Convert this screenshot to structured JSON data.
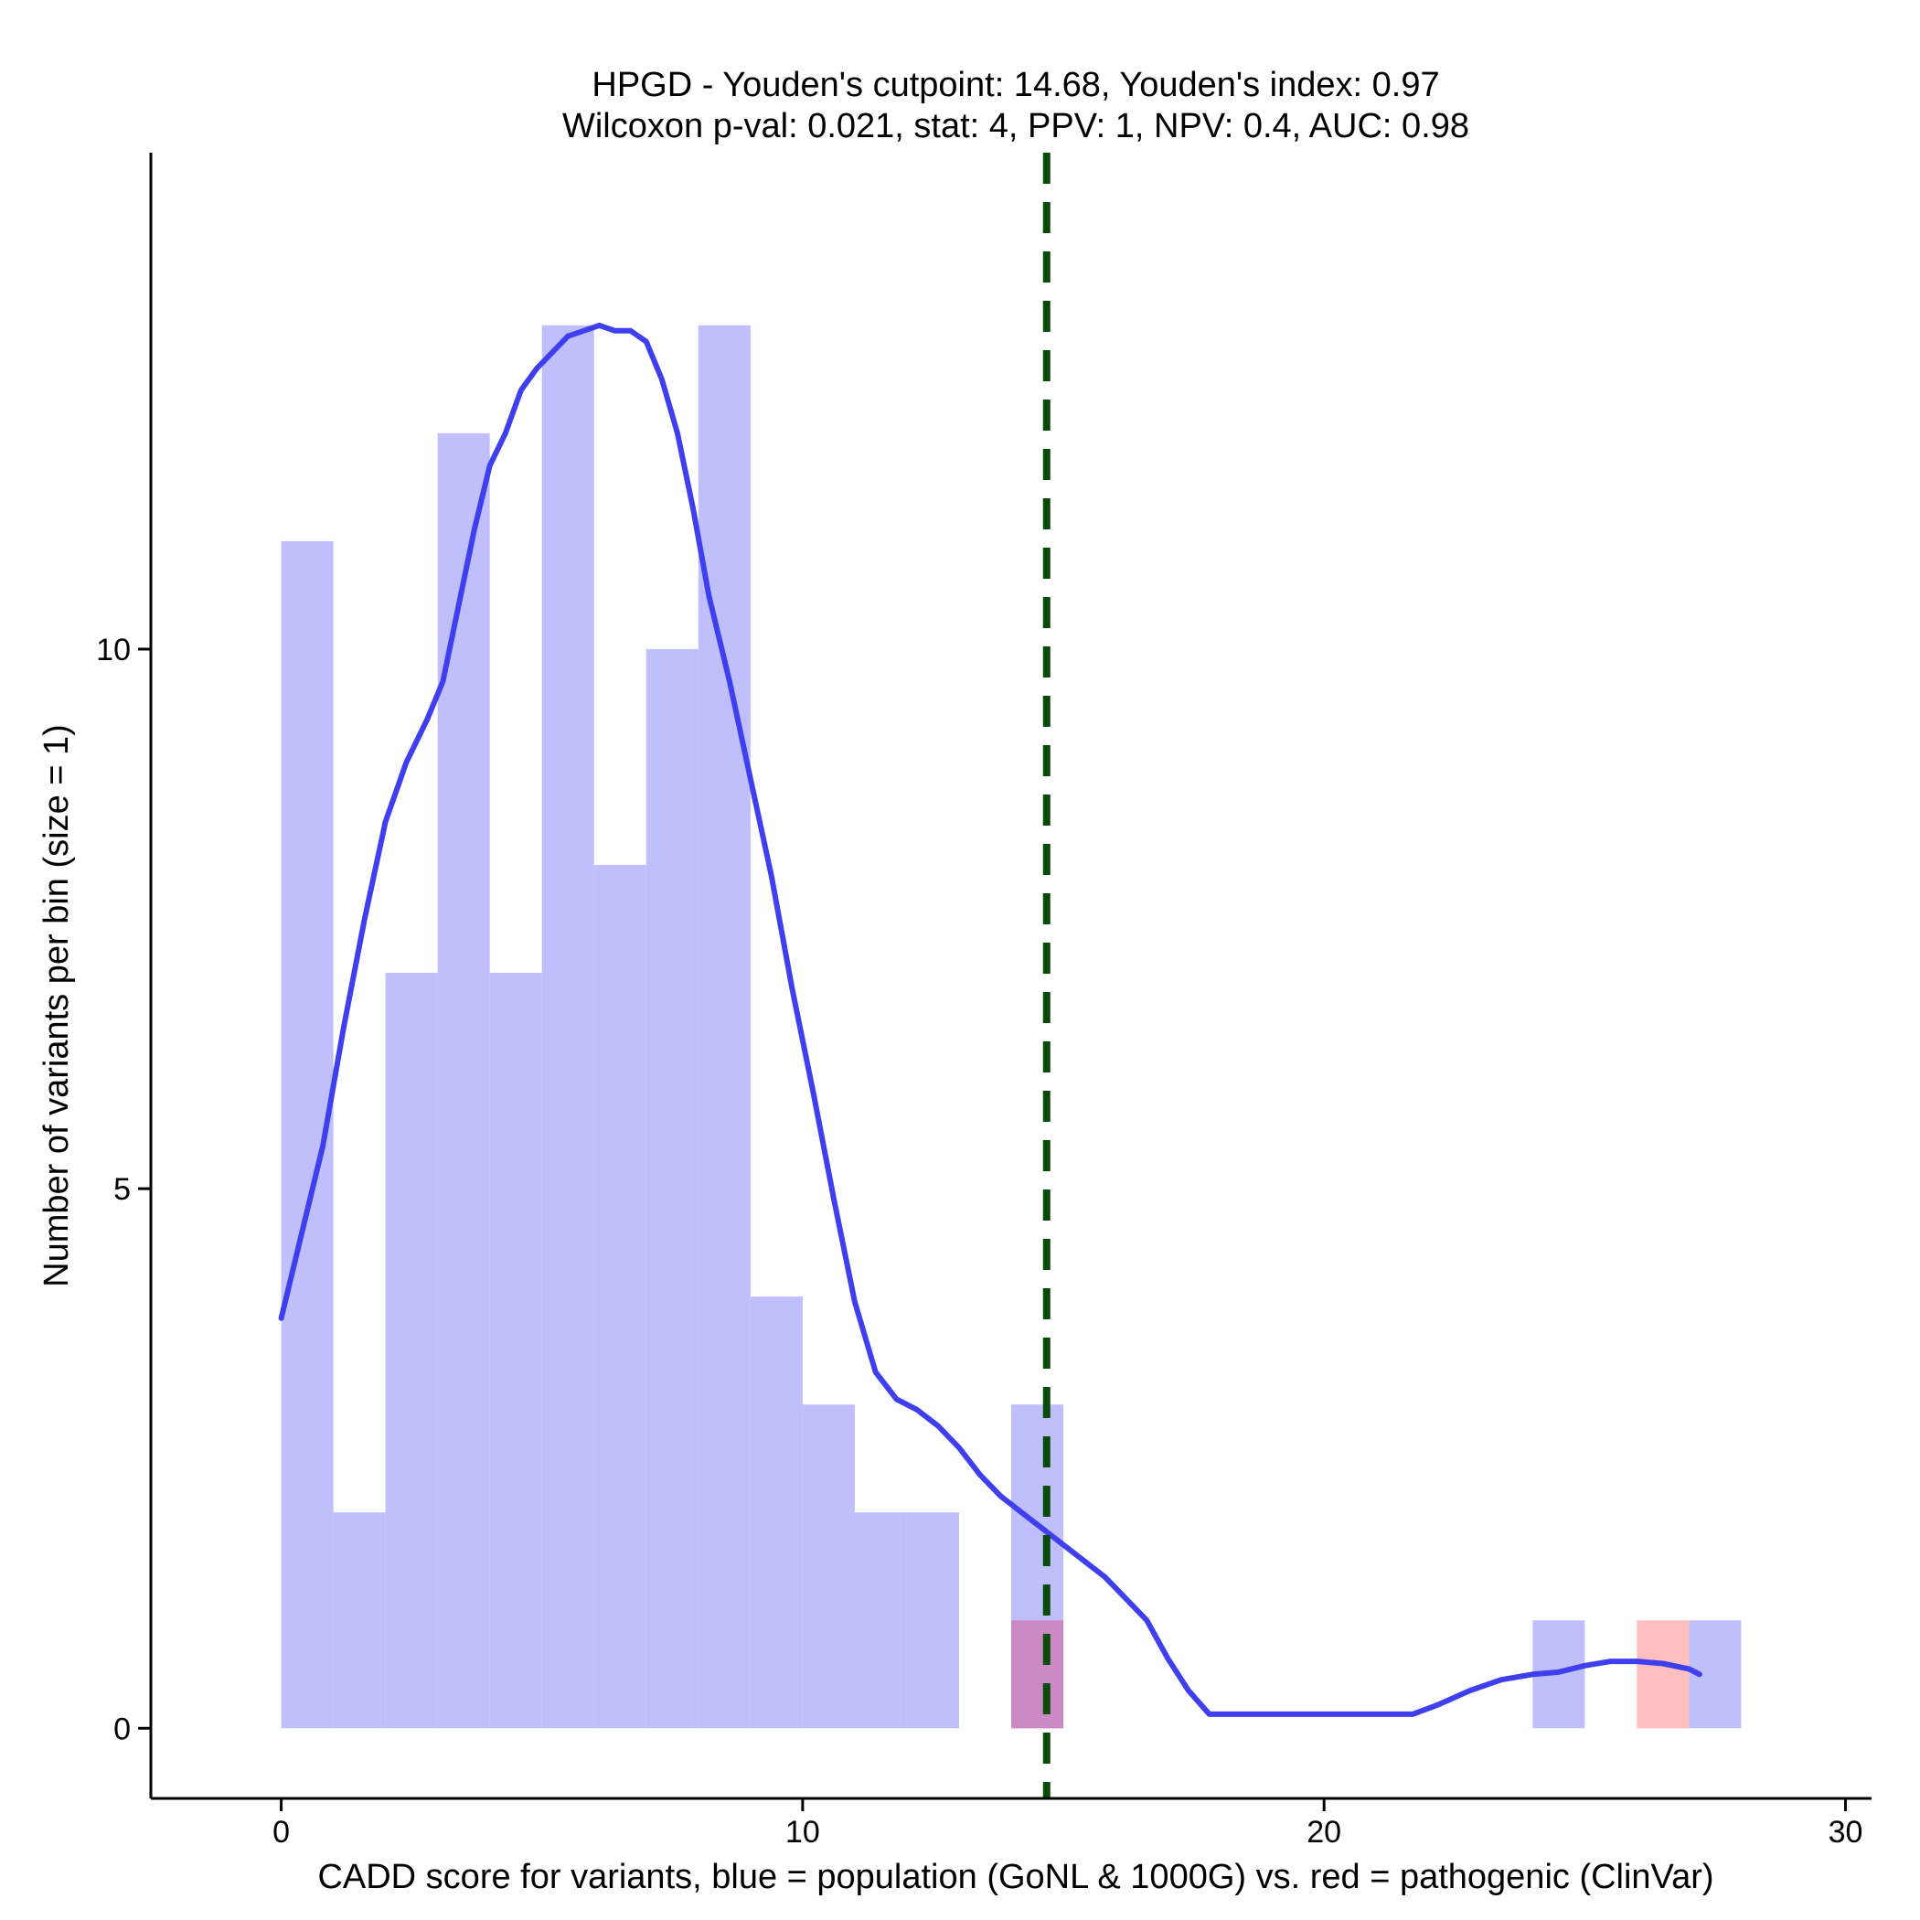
{
  "chart_data": {
    "type": "bar",
    "title": "HPGD - Youden's cutpoint: 14.68, Youden's index: 0.97",
    "subtitle": "Wilcoxon p-val: 0.021, stat: 4, PPV: 1, NPV: 0.4, AUC: 0.98",
    "xlabel": "CADD score for variants, blue = population (GoNL & 1000G) vs. red = pathogenic (ClinVar)",
    "ylabel": "Number of variants per bin (size = 1)",
    "xlim": [
      -2.5,
      30.5
    ],
    "ylim": [
      -0.65,
      14.6
    ],
    "x_ticks": [
      0,
      10,
      20,
      30
    ],
    "y_ticks": [
      0,
      5,
      10
    ],
    "bin_size": 1,
    "colors": {
      "population": "#bfbffc",
      "pathogenic": "#ffbfbf",
      "overlap": "#cc8ac4",
      "density": "#3f3fef",
      "cutpoint": "#0a4a0a"
    },
    "population_bins": [
      {
        "start": 0,
        "count": 11
      },
      {
        "start": 1,
        "count": 2
      },
      {
        "start": 2,
        "count": 7
      },
      {
        "start": 3,
        "count": 12
      },
      {
        "start": 4,
        "count": 7
      },
      {
        "start": 5,
        "count": 13
      },
      {
        "start": 6,
        "count": 8
      },
      {
        "start": 7,
        "count": 10
      },
      {
        "start": 8,
        "count": 13
      },
      {
        "start": 9,
        "count": 4
      },
      {
        "start": 10,
        "count": 3
      },
      {
        "start": 11,
        "count": 2
      },
      {
        "start": 12,
        "count": 2
      },
      {
        "start": 14,
        "count": 3
      },
      {
        "start": 24,
        "count": 1
      },
      {
        "start": 27,
        "count": 1
      }
    ],
    "pathogenic_bins": [
      {
        "start": 14,
        "count": 1
      },
      {
        "start": 26,
        "count": 1
      }
    ],
    "cutpoint": 14.68,
    "density_curve": {
      "x": [
        0,
        0.4,
        0.8,
        1.2,
        1.6,
        2.0,
        2.4,
        2.8,
        3.1,
        3.4,
        3.7,
        4.0,
        4.3,
        4.6,
        4.9,
        5.2,
        5.5,
        5.8,
        6.1,
        6.4,
        6.7,
        7.0,
        7.3,
        7.6,
        7.9,
        8.2,
        8.6,
        9.0,
        9.4,
        9.8,
        10.2,
        10.6,
        11.0,
        11.4,
        11.8,
        12.2,
        12.6,
        13.0,
        13.4,
        13.8,
        14.2,
        14.6,
        15.0,
        15.4,
        15.8,
        16.2,
        16.6,
        17.0,
        17.4,
        17.8,
        18.5,
        19.5,
        20.5,
        21.0,
        21.7,
        22.2,
        22.8,
        23.4,
        24.0,
        24.5,
        25.0,
        25.5,
        26.0,
        26.5,
        27.0,
        27.2
      ],
      "y": [
        3.8,
        4.6,
        5.4,
        6.5,
        7.5,
        8.4,
        8.95,
        9.35,
        9.7,
        10.4,
        11.1,
        11.7,
        12.0,
        12.4,
        12.6,
        12.75,
        12.9,
        12.95,
        13.0,
        12.95,
        12.95,
        12.85,
        12.5,
        12.0,
        11.3,
        10.5,
        9.7,
        8.8,
        7.9,
        6.85,
        5.9,
        4.9,
        3.95,
        3.3,
        3.05,
        2.95,
        2.8,
        2.6,
        2.35,
        2.15,
        2.0,
        1.85,
        1.7,
        1.55,
        1.4,
        1.2,
        1.0,
        0.65,
        0.35,
        0.13,
        0.13,
        0.13,
        0.13,
        0.13,
        0.13,
        0.22,
        0.35,
        0.45,
        0.5,
        0.52,
        0.58,
        0.62,
        0.62,
        0.6,
        0.55,
        0.5
      ]
    }
  }
}
